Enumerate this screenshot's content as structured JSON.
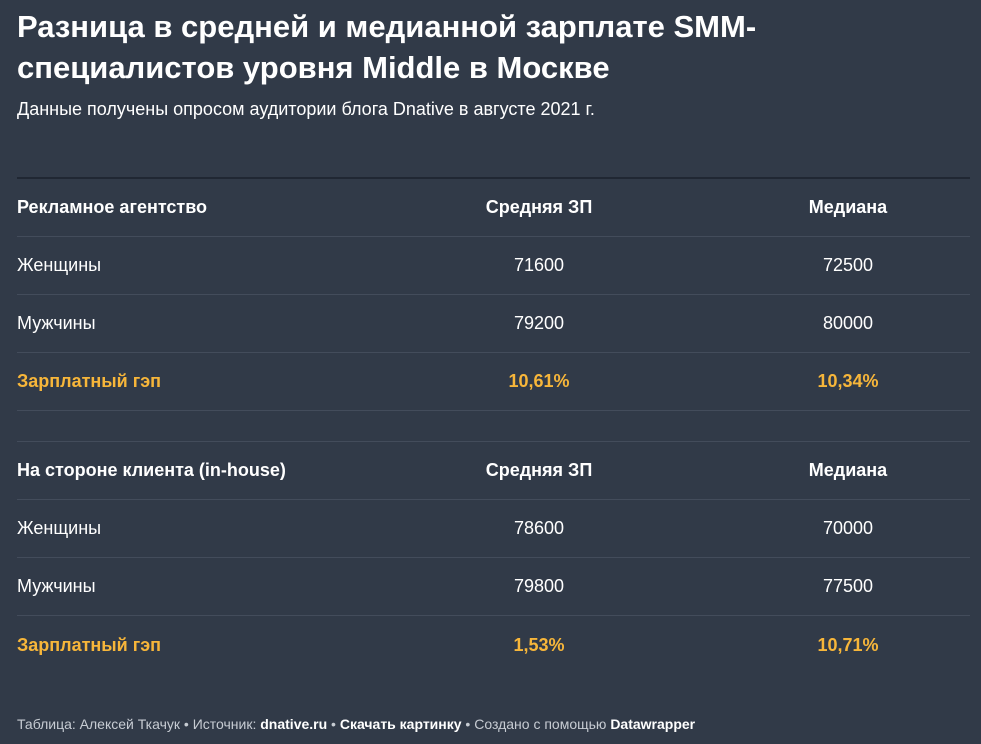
{
  "title": "Разница в средней и медианной зарплате SMM-специалистов уровня Middle в Москве",
  "subtitle": "Данные получены опросом аудитории блога Dnative в августе 2021 г.",
  "chart_data": {
    "type": "table",
    "title": "Разница в средней и медианной зарплате SMM-специалистов уровня Middle в Москве",
    "subtitle": "Данные получены опросом аудитории блога Dnative в августе 2021 г.",
    "sections": [
      {
        "header": [
          "Рекламное агентство",
          "Средняя ЗП",
          "Медиана"
        ],
        "rows": [
          [
            "Женщины",
            "71600",
            "72500"
          ],
          [
            "Мужчины",
            "79200",
            "80000"
          ]
        ],
        "gap": [
          "Зарплатный гэп",
          "10,61%",
          "10,34%"
        ]
      },
      {
        "header": [
          "На стороне клиента (in-house)",
          "Средняя ЗП",
          "Медиана"
        ],
        "rows": [
          [
            "Женщины",
            "78600",
            "70000"
          ],
          [
            "Мужчины",
            "79800",
            "77500"
          ]
        ],
        "gap": [
          "Зарплатный гэп",
          "1,53%",
          "10,71%"
        ]
      }
    ],
    "colors": {
      "background": "#313a48",
      "highlight": "#f7b63a",
      "text": "#ffffff"
    }
  },
  "footer": {
    "prefix": "Таблица: Алексей Ткачук • Источник: ",
    "source": "dnative.ru",
    "sep1": " • ",
    "download": "Скачать картинку",
    "sep2": " • Создано с помощью ",
    "tool": "Datawrapper"
  }
}
